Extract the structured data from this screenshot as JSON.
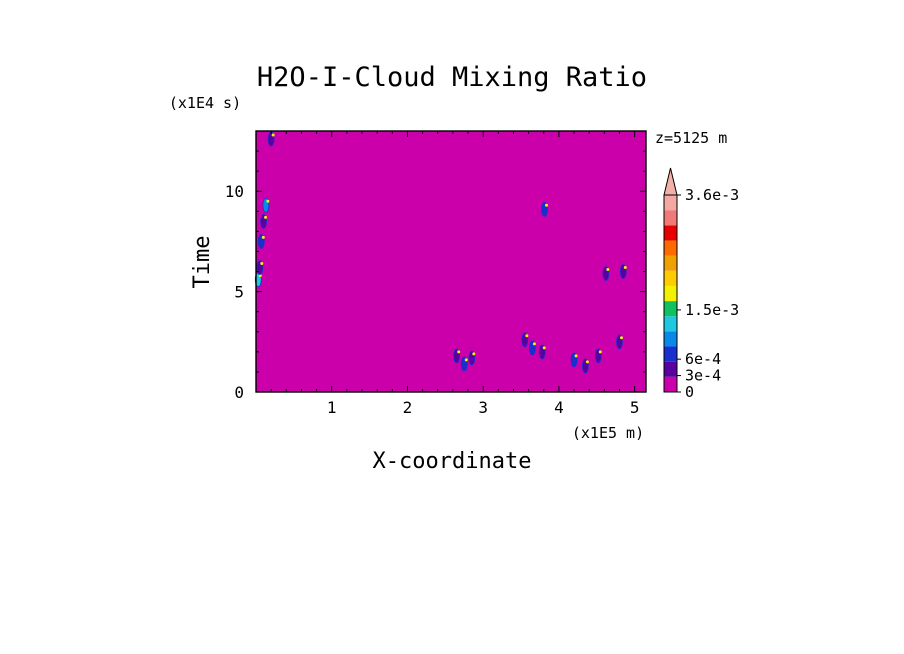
{
  "chart_data": {
    "type": "heatmap",
    "title": "H2O-I-Cloud Mixing Ratio",
    "xlabel": "X-coordinate",
    "ylabel": "Time",
    "x_unit": "(x1E5 m)",
    "y_unit": "(x1E4 s)",
    "annotation": "z=5125 m",
    "xlim": [
      0,
      5.15
    ],
    "ylim": [
      0,
      13
    ],
    "x_ticks": [
      "1",
      "2",
      "3",
      "4",
      "5"
    ],
    "y_ticks": [
      "0",
      "5",
      "10"
    ],
    "background_color": "#cc00aa",
    "colorbar": {
      "labels": [
        "3.6e-3",
        "1.5e-3",
        "6e-4",
        "3e-4",
        "0"
      ],
      "label_values": [
        0.0036,
        0.0015,
        0.0006,
        0.0003,
        0
      ],
      "extend_top_color": "#f2b0a8",
      "bands": [
        {
          "color": "#cc00aa"
        },
        {
          "color": "#5a00a0"
        },
        {
          "color": "#1a2fcf"
        },
        {
          "color": "#0a88e8"
        },
        {
          "color": "#1ec8e0"
        },
        {
          "color": "#12c060"
        },
        {
          "color": "#f2f200"
        },
        {
          "color": "#ffcc00"
        },
        {
          "color": "#f0a000"
        },
        {
          "color": "#ff6a00"
        },
        {
          "color": "#e80000"
        },
        {
          "color": "#f07a78"
        },
        {
          "color": "#f4a8a4"
        }
      ]
    },
    "features": [
      {
        "x": 0.03,
        "y": 5.6,
        "value": 0.0012
      },
      {
        "x": 0.05,
        "y": 6.2,
        "value": 0.0004
      },
      {
        "x": 0.07,
        "y": 7.5,
        "value": 0.0006
      },
      {
        "x": 0.1,
        "y": 8.5,
        "value": 0.0003
      },
      {
        "x": 0.13,
        "y": 9.3,
        "value": 0.0008
      },
      {
        "x": 0.2,
        "y": 12.6,
        "value": 0.0002
      },
      {
        "x": 3.81,
        "y": 9.1,
        "value": 0.0005
      },
      {
        "x": 2.65,
        "y": 1.8,
        "value": 0.0003
      },
      {
        "x": 2.75,
        "y": 1.4,
        "value": 0.0006
      },
      {
        "x": 2.85,
        "y": 1.7,
        "value": 0.0004
      },
      {
        "x": 3.55,
        "y": 2.6,
        "value": 0.0003
      },
      {
        "x": 3.65,
        "y": 2.2,
        "value": 0.0007
      },
      {
        "x": 3.78,
        "y": 2.0,
        "value": 0.0004
      },
      {
        "x": 4.2,
        "y": 1.6,
        "value": 0.0005
      },
      {
        "x": 4.35,
        "y": 1.3,
        "value": 0.0003
      },
      {
        "x": 4.52,
        "y": 1.8,
        "value": 0.0002
      },
      {
        "x": 4.62,
        "y": 5.9,
        "value": 0.0002
      },
      {
        "x": 4.85,
        "y": 6.0,
        "value": 0.0003
      },
      {
        "x": 4.8,
        "y": 2.5,
        "value": 0.0004
      }
    ]
  }
}
